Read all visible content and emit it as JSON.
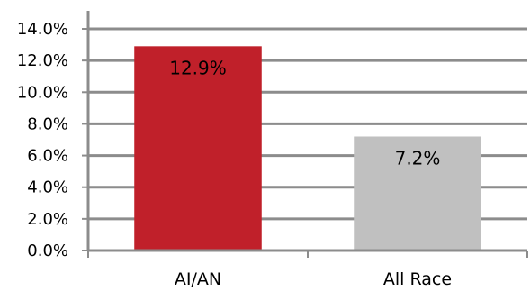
{
  "chart_data": {
    "type": "bar",
    "title": "",
    "xlabel": "",
    "ylabel": "",
    "categories": [
      "AI/AN",
      "All Race"
    ],
    "values": [
      12.9,
      7.2
    ],
    "data_labels": [
      "12.9%",
      "7.2%"
    ],
    "bar_colors": [
      "#c0202a",
      "#c0c0c0"
    ],
    "ylim": [
      0,
      14
    ],
    "yticks": [
      0,
      2,
      4,
      6,
      8,
      10,
      12,
      14
    ],
    "ytick_labels": [
      "0.0%",
      "2.0%",
      "4.0%",
      "6.0%",
      "8.0%",
      "10.0%",
      "12.0%",
      "14.0%"
    ],
    "grid": true,
    "legend": "none"
  },
  "colors": {
    "grid": "#8c8c8c",
    "axis": "#8c8c8c"
  }
}
